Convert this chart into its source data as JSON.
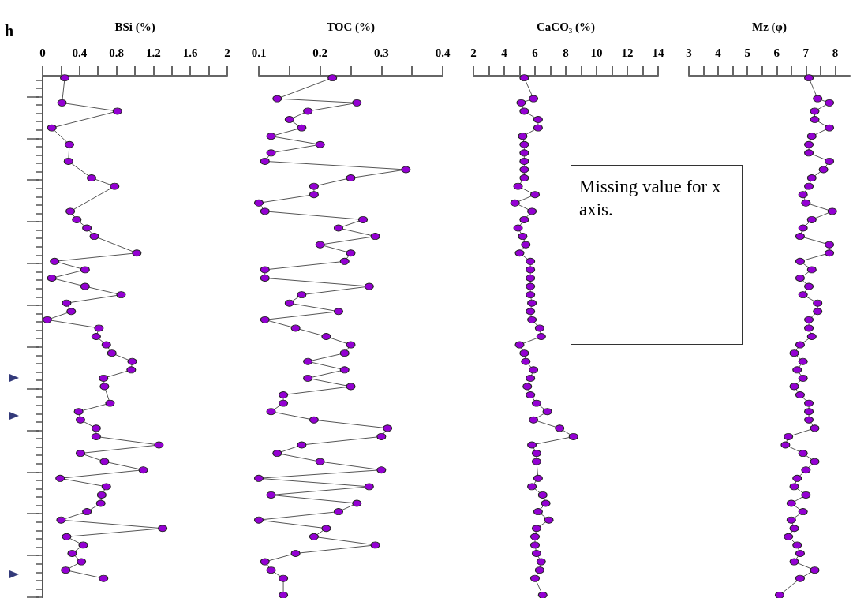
{
  "chart_data": [
    {
      "type": "line",
      "orientation": "horizontal",
      "ylabel": "h",
      "xlabel": "BSi (%)",
      "marker": "circle",
      "line_style": "solid",
      "tick_labels": "x",
      "categories": [
        null,
        null,
        null,
        null,
        null,
        null,
        null,
        null,
        null,
        null,
        null,
        null,
        null,
        null,
        null,
        null,
        null,
        null,
        null,
        null,
        null,
        null,
        null,
        null,
        null,
        null,
        null,
        null,
        null,
        null,
        null,
        null,
        null,
        null,
        null,
        null,
        null,
        null,
        null,
        null,
        null,
        null,
        null,
        null,
        null,
        null,
        null,
        null,
        null,
        null,
        null,
        null,
        null,
        null,
        null,
        null,
        null,
        null,
        null,
        null,
        null,
        null,
        null,
        null,
        null,
        null,
        null,
        null,
        null,
        null,
        null,
        null,
        null,
        null,
        null,
        null,
        null,
        null,
        null,
        null,
        null,
        null,
        null,
        null,
        null,
        null,
        null,
        null,
        null,
        null,
        null,
        null,
        null,
        null,
        null,
        null,
        null,
        null,
        null,
        null,
        null,
        null,
        null,
        null,
        null,
        null,
        null,
        null,
        null,
        null,
        null,
        null,
        null,
        null,
        null,
        null,
        null,
        null,
        null,
        null,
        null,
        null,
        null,
        null,
        null
      ],
      "xlim": [
        0,
        2
      ],
      "xticks": [
        0,
        {
          "value": 0.2,
          "label": null
        },
        0.4,
        {
          "value": 0.6,
          "label": null
        },
        0.8,
        {
          "value": 1.0,
          "label": null
        },
        1.2,
        {
          "value": 1.4,
          "label": null
        },
        1.6,
        {
          "value": 1.8,
          "label": null
        },
        2
      ],
      "series": [
        {
          "color": "#9400d3",
          "values": [
            0.24,
            null,
            null,
            null,
            null,
            null,
            0.21,
            null,
            0.81,
            null,
            null,
            null,
            0.1,
            null,
            null,
            null,
            0.29,
            null,
            null,
            null,
            0.28,
            null,
            null,
            null,
            0.53,
            null,
            0.78,
            null,
            null,
            null,
            null,
            null,
            0.3,
            null,
            0.37,
            null,
            0.48,
            null,
            0.56,
            null,
            null,
            null,
            1.02,
            null,
            0.13,
            null,
            0.46,
            null,
            0.1,
            null,
            0.46,
            null,
            0.85,
            null,
            0.26,
            null,
            0.31,
            null,
            0.05,
            null,
            0.61,
            null,
            0.58,
            null,
            0.69,
            null,
            0.75,
            null,
            0.97,
            null,
            0.96,
            null,
            0.66,
            null,
            0.67,
            null,
            null,
            null,
            0.73,
            null,
            0.39,
            null,
            0.41,
            null,
            0.58,
            null,
            0.58,
            null,
            1.26,
            null,
            0.41,
            null,
            0.67,
            null,
            1.09,
            null,
            0.19,
            null,
            0.69,
            null,
            0.64,
            null,
            0.63,
            null,
            0.48,
            null,
            0.2,
            null,
            1.3,
            null,
            0.26,
            null,
            0.44,
            null,
            0.32,
            null,
            0.42,
            null,
            0.25,
            null,
            0.66,
            null,
            null,
            null,
            null
          ]
        }
      ]
    },
    {
      "type": "line",
      "orientation": "horizontal",
      "xlabel": "TOC (%)",
      "marker": "circle",
      "line_style": "solid",
      "tick_labels": "x",
      "categories": [
        null,
        null,
        null,
        null,
        null,
        null,
        null,
        null,
        null,
        null,
        null,
        null,
        null,
        null,
        null,
        null,
        null,
        null,
        null,
        null,
        null,
        null,
        null,
        null,
        null,
        null,
        null,
        null,
        null,
        null,
        null,
        null,
        null,
        null,
        null,
        null,
        null,
        null,
        null,
        null,
        null,
        null,
        null,
        null,
        null,
        null,
        null,
        null,
        null,
        null,
        null,
        null,
        null,
        null,
        null,
        null,
        null,
        null,
        null,
        null,
        null,
        null,
        null,
        null,
        null,
        null,
        null,
        null,
        null,
        null,
        null,
        null,
        null,
        null,
        null,
        null,
        null,
        null,
        null,
        null,
        null,
        null,
        null,
        null,
        null,
        null,
        null,
        null,
        null,
        null,
        null,
        null,
        null,
        null,
        null,
        null,
        null,
        null,
        null,
        null,
        null,
        null,
        null,
        null,
        null,
        null,
        null,
        null,
        null,
        null,
        null,
        null,
        null,
        null,
        null,
        null,
        null,
        null,
        null,
        null,
        null,
        null,
        null,
        null,
        null
      ],
      "xlim": [
        0.1,
        0.4
      ],
      "xticks": [
        0.1,
        {
          "value": 0.15,
          "label": null
        },
        0.2,
        {
          "value": 0.25,
          "label": null
        },
        0.3,
        {
          "value": 0.35,
          "label": null
        },
        0.4
      ],
      "series": [
        {
          "color": "#9400d3",
          "values": [
            0.22,
            null,
            null,
            null,
            null,
            0.13,
            0.26,
            null,
            0.18,
            null,
            0.15,
            null,
            0.17,
            null,
            0.12,
            null,
            0.2,
            null,
            0.12,
            null,
            0.11,
            null,
            0.34,
            null,
            0.25,
            null,
            0.19,
            null,
            0.19,
            null,
            0.1,
            null,
            0.11,
            null,
            0.27,
            null,
            0.23,
            null,
            0.29,
            null,
            0.2,
            null,
            0.25,
            null,
            0.24,
            null,
            0.11,
            null,
            0.11,
            null,
            0.28,
            null,
            0.17,
            null,
            0.15,
            null,
            0.23,
            null,
            0.11,
            null,
            0.16,
            null,
            0.21,
            null,
            0.25,
            null,
            0.24,
            null,
            0.18,
            null,
            0.24,
            null,
            0.18,
            null,
            0.25,
            null,
            0.14,
            null,
            0.14,
            null,
            0.12,
            null,
            0.19,
            null,
            0.31,
            null,
            0.3,
            null,
            0.17,
            null,
            0.13,
            null,
            0.2,
            null,
            0.3,
            null,
            0.1,
            null,
            0.28,
            null,
            0.12,
            null,
            0.26,
            null,
            0.23,
            null,
            0.1,
            null,
            0.21,
            null,
            0.19,
            null,
            0.29,
            null,
            0.16,
            null,
            0.11,
            null,
            0.12,
            null,
            0.14,
            null,
            null,
            null,
            0.14
          ]
        }
      ]
    },
    {
      "type": "line",
      "orientation": "horizontal",
      "xlabel": "CaCO₃ (%)",
      "marker": "circle",
      "line_style": "solid",
      "tick_labels": "x",
      "annotations": [
        "Missing value for x axis."
      ],
      "categories": [
        null,
        null,
        null,
        null,
        null,
        null,
        null,
        null,
        null,
        null,
        null,
        null,
        null,
        null,
        null,
        null,
        null,
        null,
        null,
        null,
        null,
        null,
        null,
        null,
        null,
        null,
        null,
        null,
        null,
        null,
        null,
        null,
        null,
        null,
        null,
        null,
        null,
        null,
        null,
        null,
        null,
        null,
        null,
        null,
        null,
        null,
        null,
        null,
        null,
        null,
        null,
        null,
        null,
        null,
        null,
        null,
        null,
        null,
        null,
        null,
        null,
        null,
        null,
        null,
        null,
        null,
        null,
        null,
        null,
        null,
        null,
        null,
        null,
        null,
        null,
        null,
        null,
        null,
        null,
        null,
        null,
        null,
        null,
        null,
        null,
        null,
        null,
        null,
        null,
        null,
        null,
        null,
        null,
        null,
        null,
        null,
        null,
        null,
        null,
        null,
        null,
        null,
        null,
        null,
        null,
        null,
        null,
        null,
        null,
        null,
        null,
        null,
        null,
        null,
        null,
        null,
        null,
        null,
        null,
        null,
        null,
        null,
        null,
        null,
        null
      ],
      "xlim": [
        2,
        14
      ],
      "xticks": [
        2,
        {
          "value": 3,
          "label": null
        },
        4,
        {
          "value": 5,
          "label": null
        },
        6,
        {
          "value": 7,
          "label": null
        },
        8,
        {
          "value": 9,
          "label": null
        },
        10,
        {
          "value": 11,
          "label": null
        },
        12,
        {
          "value": 13,
          "label": null
        },
        14
      ],
      "series": [
        {
          "color": "#9400d3",
          "values": [
            5.3,
            null,
            null,
            null,
            null,
            5.9,
            5.1,
            null,
            5.3,
            null,
            6.2,
            null,
            6.2,
            null,
            5.2,
            null,
            5.3,
            null,
            5.3,
            null,
            5.3,
            null,
            5.3,
            null,
            5.3,
            null,
            4.9,
            null,
            6.0,
            null,
            4.7,
            null,
            5.8,
            null,
            5.3,
            null,
            4.9,
            null,
            5.2,
            null,
            5.4,
            null,
            5.0,
            null,
            5.7,
            null,
            5.7,
            null,
            5.7,
            null,
            5.7,
            null,
            5.7,
            null,
            5.8,
            null,
            5.7,
            null,
            5.8,
            null,
            6.3,
            null,
            6.4,
            null,
            5.0,
            null,
            5.3,
            null,
            5.4,
            null,
            5.9,
            null,
            5.7,
            null,
            5.5,
            null,
            5.7,
            null,
            6.1,
            null,
            6.8,
            null,
            5.9,
            null,
            7.6,
            null,
            8.5,
            null,
            5.8,
            null,
            6.1,
            null,
            6.1,
            null,
            null,
            null,
            6.2,
            null,
            5.8,
            null,
            6.5,
            null,
            6.7,
            null,
            6.2,
            null,
            6.9,
            null,
            6.1,
            null,
            6.0,
            null,
            6.0,
            null,
            6.1,
            null,
            6.4,
            null,
            6.3,
            null,
            6.0,
            null,
            null,
            null,
            6.5
          ]
        }
      ]
    },
    {
      "type": "line",
      "orientation": "horizontal",
      "xlabel": "Mz (φ)",
      "marker": "circle",
      "line_style": "solid",
      "tick_labels": "x",
      "categories": [
        null,
        null,
        null,
        null,
        null,
        null,
        null,
        null,
        null,
        null,
        null,
        null,
        null,
        null,
        null,
        null,
        null,
        null,
        null,
        null,
        null,
        null,
        null,
        null,
        null,
        null,
        null,
        null,
        null,
        null,
        null,
        null,
        null,
        null,
        null,
        null,
        null,
        null,
        null,
        null,
        null,
        null,
        null,
        null,
        null,
        null,
        null,
        null,
        null,
        null,
        null,
        null,
        null,
        null,
        null,
        null,
        null,
        null,
        null,
        null,
        null,
        null,
        null,
        null,
        null,
        null,
        null,
        null,
        null,
        null,
        null,
        null,
        null,
        null,
        null,
        null,
        null,
        null,
        null,
        null,
        null,
        null,
        null,
        null,
        null,
        null,
        null,
        null,
        null,
        null,
        null,
        null,
        null,
        null,
        null,
        null,
        null,
        null,
        null,
        null,
        null,
        null,
        null,
        null,
        null,
        null,
        null,
        null,
        null,
        null,
        null,
        null,
        null,
        null,
        null,
        null,
        null,
        null,
        null,
        null,
        null,
        null,
        null,
        null,
        null
      ],
      "xlim": [
        3,
        8.5
      ],
      "xticks": [
        3,
        {
          "value": 3.5,
          "label": null
        },
        4,
        {
          "value": 4.5,
          "label": null
        },
        5,
        {
          "value": 5.5,
          "label": null
        },
        6,
        {
          "value": 6.5,
          "label": null
        },
        7,
        {
          "value": 7.5,
          "label": null
        },
        8
      ],
      "series": [
        {
          "color": "#9400d3",
          "values": [
            7.1,
            null,
            null,
            null,
            null,
            7.4,
            7.8,
            null,
            7.3,
            null,
            7.3,
            null,
            7.8,
            null,
            7.2,
            null,
            7.1,
            null,
            7.1,
            null,
            7.8,
            null,
            7.6,
            null,
            7.2,
            null,
            7.1,
            null,
            6.9,
            null,
            7.0,
            null,
            7.9,
            null,
            7.2,
            null,
            6.9,
            null,
            6.8,
            null,
            7.8,
            null,
            7.8,
            null,
            6.8,
            null,
            7.2,
            null,
            6.8,
            null,
            7.1,
            null,
            6.9,
            null,
            7.4,
            null,
            7.4,
            null,
            7.1,
            null,
            7.1,
            null,
            7.2,
            null,
            6.8,
            null,
            6.6,
            null,
            6.9,
            null,
            6.7,
            null,
            6.9,
            null,
            6.6,
            null,
            6.8,
            null,
            7.1,
            null,
            7.1,
            null,
            7.1,
            null,
            7.3,
            null,
            6.4,
            null,
            6.3,
            null,
            6.9,
            null,
            7.3,
            null,
            7.0,
            null,
            6.7,
            null,
            6.6,
            null,
            7.0,
            null,
            6.5,
            null,
            6.9,
            null,
            6.5,
            null,
            6.6,
            null,
            6.4,
            null,
            6.7,
            null,
            6.8,
            null,
            6.6,
            null,
            7.3,
            null,
            6.8,
            null,
            null,
            null,
            6.1
          ]
        }
      ]
    }
  ]
}
